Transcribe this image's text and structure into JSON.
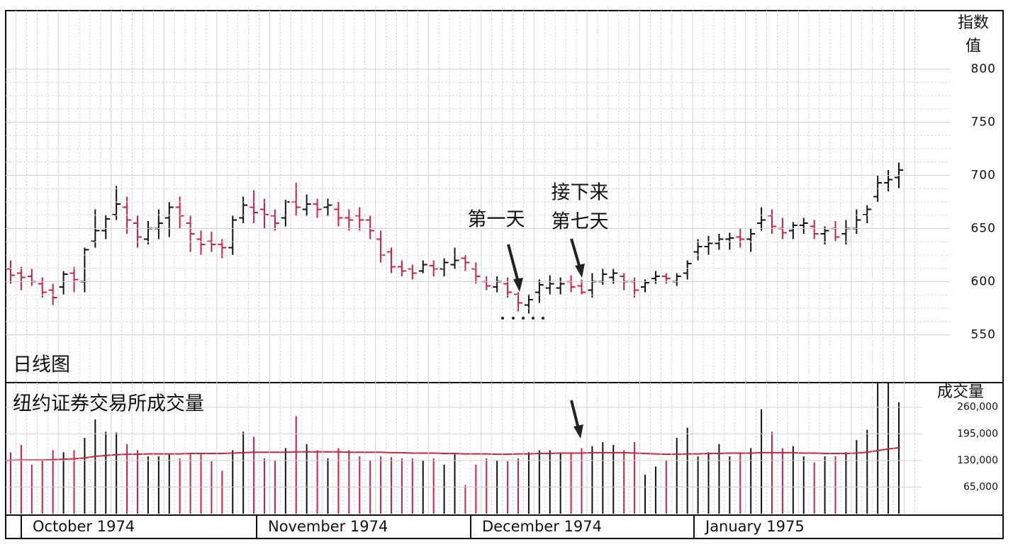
{
  "chart_data": {
    "type": "ohlc",
    "price_axis_title": "指数值",
    "volume_axis_title": "成交量",
    "chart_label": "日线图",
    "volume_label": "纽约证券交易所成交量",
    "annotations": [
      "第一天",
      "接下来",
      "第七天"
    ],
    "months": [
      "October 1974",
      "November 1974",
      "December 1974",
      "January 1975"
    ],
    "up_color": "#111111",
    "down_color": "#d0203f",
    "ma_color": "#c8253d",
    "ylim": [
      505,
      855
    ],
    "yticks": [
      550,
      600,
      650,
      700,
      750,
      800
    ],
    "y2lim": [
      0,
      320000
    ],
    "y2ticks": [
      {
        "value": 65000,
        "label": "65,000"
      },
      {
        "value": 130000,
        "label": "130,000"
      },
      {
        "value": 195000,
        "label": "195,000"
      },
      {
        "value": 260000,
        "label": "260,000"
      }
    ],
    "open": [
      612,
      608,
      605,
      598,
      592,
      595,
      608,
      600,
      638,
      648,
      663,
      670,
      655,
      640,
      650,
      660,
      670,
      655,
      640,
      638,
      635,
      632,
      660,
      670,
      668,
      662,
      660,
      675,
      668,
      673,
      670,
      668,
      660,
      662,
      658,
      640,
      628,
      614,
      612,
      610,
      615,
      612,
      616,
      622,
      612,
      600,
      595,
      598,
      588,
      578,
      590,
      594,
      594,
      600,
      596,
      592,
      600,
      604,
      605,
      600,
      595,
      603,
      605,
      600,
      608,
      628,
      633,
      636,
      640,
      642,
      640,
      655,
      662,
      650,
      648,
      653,
      652,
      645,
      650,
      645,
      650,
      663,
      680,
      693,
      698
    ],
    "high": [
      620,
      614,
      612,
      604,
      598,
      610,
      614,
      632,
      668,
      663,
      690,
      680,
      662,
      657,
      668,
      675,
      680,
      662,
      648,
      647,
      640,
      662,
      680,
      686,
      678,
      668,
      677,
      693,
      682,
      678,
      678,
      675,
      668,
      670,
      662,
      648,
      632,
      620,
      616,
      620,
      620,
      622,
      632,
      625,
      618,
      605,
      605,
      604,
      590,
      588,
      602,
      606,
      604,
      606,
      602,
      608,
      612,
      612,
      608,
      604,
      602,
      610,
      608,
      608,
      620,
      640,
      643,
      645,
      646,
      650,
      650,
      670,
      668,
      660,
      656,
      660,
      658,
      652,
      657,
      658,
      668,
      672,
      700,
      705,
      712
    ],
    "low": [
      598,
      592,
      596,
      585,
      578,
      588,
      590,
      590,
      632,
      640,
      658,
      645,
      632,
      635,
      640,
      642,
      650,
      628,
      625,
      628,
      622,
      625,
      655,
      655,
      650,
      648,
      652,
      662,
      662,
      660,
      662,
      652,
      648,
      648,
      640,
      618,
      608,
      605,
      602,
      608,
      605,
      605,
      612,
      610,
      598,
      592,
      590,
      585,
      572,
      570,
      580,
      588,
      588,
      590,
      588,
      585,
      597,
      598,
      592,
      585,
      590,
      598,
      598,
      596,
      602,
      620,
      625,
      630,
      630,
      632,
      628,
      648,
      645,
      640,
      640,
      645,
      640,
      635,
      638,
      635,
      645,
      655,
      675,
      685,
      688
    ],
    "close": [
      606,
      604,
      600,
      590,
      585,
      607,
      602,
      630,
      648,
      659,
      673,
      658,
      642,
      650,
      655,
      670,
      662,
      645,
      635,
      635,
      632,
      658,
      672,
      665,
      663,
      655,
      675,
      670,
      673,
      668,
      672,
      660,
      658,
      658,
      648,
      625,
      614,
      610,
      608,
      616,
      612,
      618,
      620,
      618,
      605,
      596,
      600,
      590,
      580,
      583,
      597,
      598,
      598,
      595,
      590,
      600,
      607,
      608,
      600,
      592,
      599,
      605,
      603,
      605,
      617,
      633,
      636,
      640,
      641,
      640,
      645,
      658,
      652,
      646,
      653,
      655,
      645,
      648,
      642,
      650,
      658,
      668,
      693,
      696,
      705
    ],
    "volume": [
      150000,
      168000,
      120000,
      130000,
      155000,
      150000,
      155000,
      185000,
      230000,
      200000,
      198000,
      170000,
      155000,
      140000,
      140000,
      145000,
      135000,
      148000,
      145000,
      128000,
      105000,
      155000,
      200000,
      188000,
      135000,
      130000,
      160000,
      238000,
      170000,
      155000,
      135000,
      160000,
      155000,
      140000,
      130000,
      140000,
      138000,
      135000,
      135000,
      130000,
      135000,
      120000,
      145000,
      70000,
      120000,
      135000,
      130000,
      128000,
      135000,
      150000,
      155000,
      155000,
      150000,
      150000,
      160000,
      165000,
      175000,
      168000,
      155000,
      175000,
      95000,
      115000,
      130000,
      185000,
      210000,
      140000,
      150000,
      170000,
      140000,
      150000,
      160000,
      255000,
      200000,
      160000,
      165000,
      140000,
      125000,
      140000,
      140000,
      150000,
      180000,
      205000,
      320000,
      320000,
      272000
    ],
    "volume_ma": [
      130000,
      131000,
      131000,
      131000,
      132000,
      133000,
      134000,
      136000,
      140000,
      142000,
      144000,
      145000,
      145000,
      146000,
      146000,
      146000,
      146000,
      147000,
      147000,
      147000,
      147000,
      148000,
      149000,
      150000,
      150000,
      150000,
      150000,
      151000,
      151000,
      151000,
      151000,
      151000,
      150000,
      150000,
      150000,
      150000,
      149000,
      149000,
      148000,
      148000,
      148000,
      147000,
      147000,
      146000,
      146000,
      146000,
      145000,
      145000,
      146000,
      146000,
      147000,
      147000,
      148000,
      148000,
      148000,
      149000,
      149000,
      149000,
      149000,
      148000,
      147000,
      146000,
      145000,
      145000,
      146000,
      146000,
      147000,
      147000,
      148000,
      148000,
      148000,
      149000,
      149000,
      149000,
      149000,
      148000,
      148000,
      147000,
      147000,
      147000,
      148000,
      150000,
      154000,
      158000,
      161000
    ]
  }
}
